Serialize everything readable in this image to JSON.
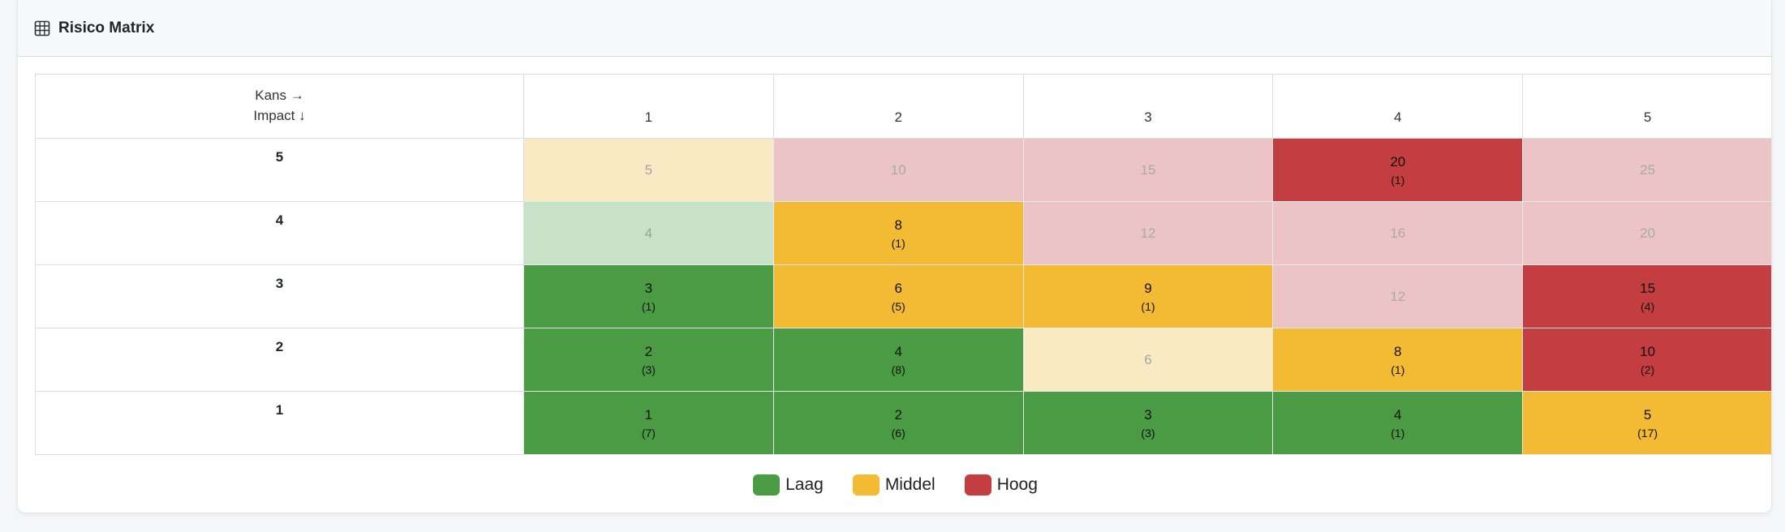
{
  "header": {
    "title": "Risico Matrix",
    "icon": "table-grid-icon"
  },
  "matrix": {
    "corner": {
      "top": "Kans →",
      "bottom": "Impact ↓"
    },
    "columns": [
      "1",
      "2",
      "3",
      "4",
      "5"
    ],
    "rows": [
      {
        "impact": "5",
        "cells": [
          {
            "score": "5",
            "count": "",
            "level": "lamber"
          },
          {
            "score": "10",
            "count": "",
            "level": "lred"
          },
          {
            "score": "15",
            "count": "",
            "level": "lred"
          },
          {
            "score": "20",
            "count": "(1)",
            "level": "red"
          },
          {
            "score": "25",
            "count": "",
            "level": "lred"
          }
        ]
      },
      {
        "impact": "4",
        "cells": [
          {
            "score": "4",
            "count": "",
            "level": "lgreen"
          },
          {
            "score": "8",
            "count": "(1)",
            "level": "amber"
          },
          {
            "score": "12",
            "count": "",
            "level": "lred"
          },
          {
            "score": "16",
            "count": "",
            "level": "lred"
          },
          {
            "score": "20",
            "count": "",
            "level": "lred"
          }
        ]
      },
      {
        "impact": "3",
        "cells": [
          {
            "score": "3",
            "count": "(1)",
            "level": "green"
          },
          {
            "score": "6",
            "count": "(5)",
            "level": "amber"
          },
          {
            "score": "9",
            "count": "(1)",
            "level": "amber"
          },
          {
            "score": "12",
            "count": "",
            "level": "lred"
          },
          {
            "score": "15",
            "count": "(4)",
            "level": "red"
          }
        ]
      },
      {
        "impact": "2",
        "cells": [
          {
            "score": "2",
            "count": "(3)",
            "level": "green"
          },
          {
            "score": "4",
            "count": "(8)",
            "level": "green"
          },
          {
            "score": "6",
            "count": "",
            "level": "lamber"
          },
          {
            "score": "8",
            "count": "(1)",
            "level": "amber"
          },
          {
            "score": "10",
            "count": "(2)",
            "level": "red"
          }
        ]
      },
      {
        "impact": "1",
        "cells": [
          {
            "score": "1",
            "count": "(7)",
            "level": "green"
          },
          {
            "score": "2",
            "count": "(6)",
            "level": "green"
          },
          {
            "score": "3",
            "count": "(3)",
            "level": "green"
          },
          {
            "score": "4",
            "count": "(1)",
            "level": "green"
          },
          {
            "score": "5",
            "count": "(17)",
            "level": "amber"
          }
        ]
      }
    ]
  },
  "legend": [
    {
      "label": "Laag",
      "color": "#4a9b44"
    },
    {
      "label": "Middel",
      "color": "#f3bb33"
    },
    {
      "label": "Hoog",
      "color": "#c33d41"
    }
  ]
}
